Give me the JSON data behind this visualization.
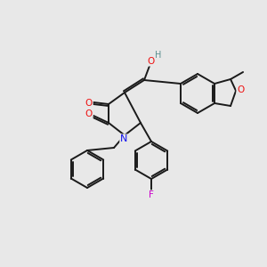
{
  "bg_color": "#e8e8e8",
  "bond_color": "#1a1a1a",
  "atom_colors": {
    "N": "#1010ee",
    "O": "#ee1010",
    "F": "#cc00cc",
    "H_teal": "#5a9090",
    "C": "#1a1a1a"
  },
  "figsize": [
    3.0,
    3.0
  ],
  "dpi": 100
}
